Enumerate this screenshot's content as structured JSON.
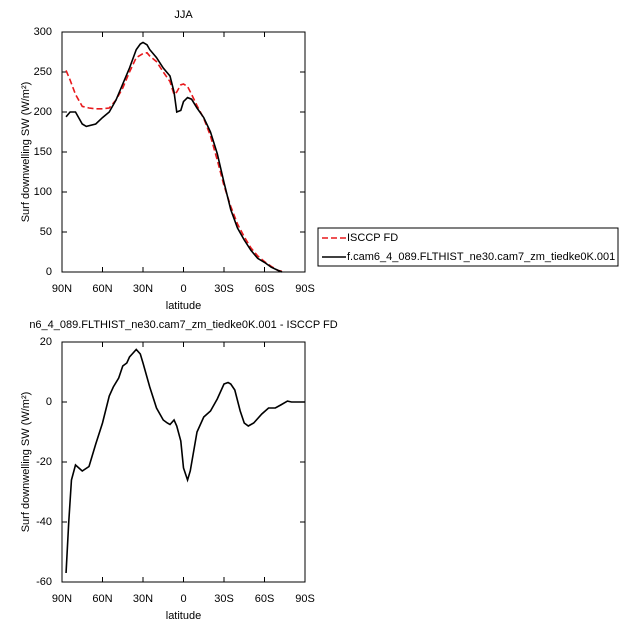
{
  "chart_data": [
    {
      "type": "line",
      "title": "JJA",
      "xlabel": "latitude",
      "ylabel": "Surf downwelling SW (W/m²)",
      "xlim": [
        90,
        -90
      ],
      "xticks": [
        {
          "value": 90,
          "label": "90N"
        },
        {
          "value": 60,
          "label": "60N"
        },
        {
          "value": 30,
          "label": "30N"
        },
        0,
        {
          "value": -30,
          "label": "30S"
        },
        {
          "value": -60,
          "label": "60S"
        },
        {
          "value": -90,
          "label": "90S"
        }
      ],
      "ylim": [
        0,
        300
      ],
      "yticks": [
        0,
        50,
        100,
        150,
        200,
        250,
        300
      ],
      "legend": "right",
      "series": [
        {
          "name": "ISCCP FD",
          "color": "#e8191c",
          "line_style": "dashed",
          "x": [
            87,
            84,
            80,
            75,
            70,
            65,
            60,
            55,
            50,
            45,
            40,
            35,
            30,
            27,
            25,
            20,
            15,
            10,
            7,
            5,
            2,
            0,
            -3,
            -6,
            -10,
            -15,
            -20,
            -25,
            -30,
            -35,
            -40,
            -45,
            -50,
            -55,
            -60,
            -65,
            -70,
            -75
          ],
          "values": [
            252,
            240,
            222,
            207,
            205,
            204,
            204,
            205,
            215,
            230,
            250,
            268,
            273,
            274,
            270,
            263,
            250,
            238,
            222,
            225,
            234,
            235,
            232,
            222,
            208,
            192,
            170,
            140,
            108,
            82,
            60,
            44,
            30,
            20,
            13,
            7,
            2,
            0
          ]
        },
        {
          "name": "f.cam6_4_089.FLTHIST_ne30.cam7_zm_tiedke0K.001",
          "color": "#000000",
          "line_style": "solid",
          "x": [
            87,
            84,
            80,
            75,
            72,
            65,
            60,
            55,
            50,
            45,
            40,
            35,
            32,
            30,
            27,
            25,
            20,
            15,
            10,
            7,
            5,
            2,
            0,
            -3,
            -6,
            -10,
            -15,
            -20,
            -25,
            -30,
            -35,
            -40,
            -45,
            -50,
            -55,
            -60,
            -65,
            -70,
            -73
          ],
          "values": [
            194,
            200,
            200,
            185,
            182,
            185,
            193,
            200,
            215,
            235,
            255,
            278,
            285,
            287,
            284,
            278,
            268,
            255,
            245,
            225,
            200,
            202,
            213,
            218,
            216,
            205,
            193,
            175,
            148,
            112,
            78,
            55,
            40,
            27,
            17,
            12,
            6,
            2,
            0
          ]
        }
      ]
    },
    {
      "type": "line",
      "title": "n6_4_089.FLTHIST_ne30.cam7_zm_tiedke0K.001 - ISCCP FD",
      "xlabel": "latitude",
      "ylabel": "Surf downwelling SW (W/m²)",
      "xlim": [
        90,
        -90
      ],
      "xticks": [
        {
          "value": 90,
          "label": "90N"
        },
        {
          "value": 60,
          "label": "60N"
        },
        {
          "value": 30,
          "label": "30N"
        },
        0,
        {
          "value": -30,
          "label": "30S"
        },
        {
          "value": -60,
          "label": "60S"
        },
        {
          "value": -90,
          "label": "90S"
        }
      ],
      "ylim": [
        -60,
        20
      ],
      "yticks": [
        -60,
        -40,
        -20,
        0,
        20
      ],
      "series": [
        {
          "color": "#000000",
          "line_style": "solid",
          "x": [
            87,
            85,
            83,
            80,
            75,
            70,
            65,
            60,
            55,
            52,
            48,
            45,
            42,
            40,
            38,
            35,
            32,
            30,
            25,
            20,
            15,
            12,
            10,
            7,
            5,
            2,
            0,
            -3,
            -5,
            -10,
            -15,
            -20,
            -25,
            -30,
            -33,
            -35,
            -38,
            -42,
            -45,
            -48,
            -52,
            -58,
            -63,
            -68,
            -72,
            -77,
            -80,
            -90
          ],
          "values": [
            -57,
            -40,
            -26,
            -21,
            -23,
            -21.5,
            -14,
            -7,
            2,
            5,
            8,
            12,
            13,
            15,
            16,
            17.5,
            16,
            13,
            5,
            -2,
            -6,
            -7,
            -7.5,
            -6,
            -8,
            -13,
            -22,
            -26,
            -23,
            -10,
            -5,
            -3,
            1,
            6,
            6.5,
            6,
            4,
            -3,
            -7,
            -8,
            -7,
            -4,
            -2,
            -2,
            -1,
            0.3,
            0,
            0
          ]
        }
      ]
    }
  ]
}
